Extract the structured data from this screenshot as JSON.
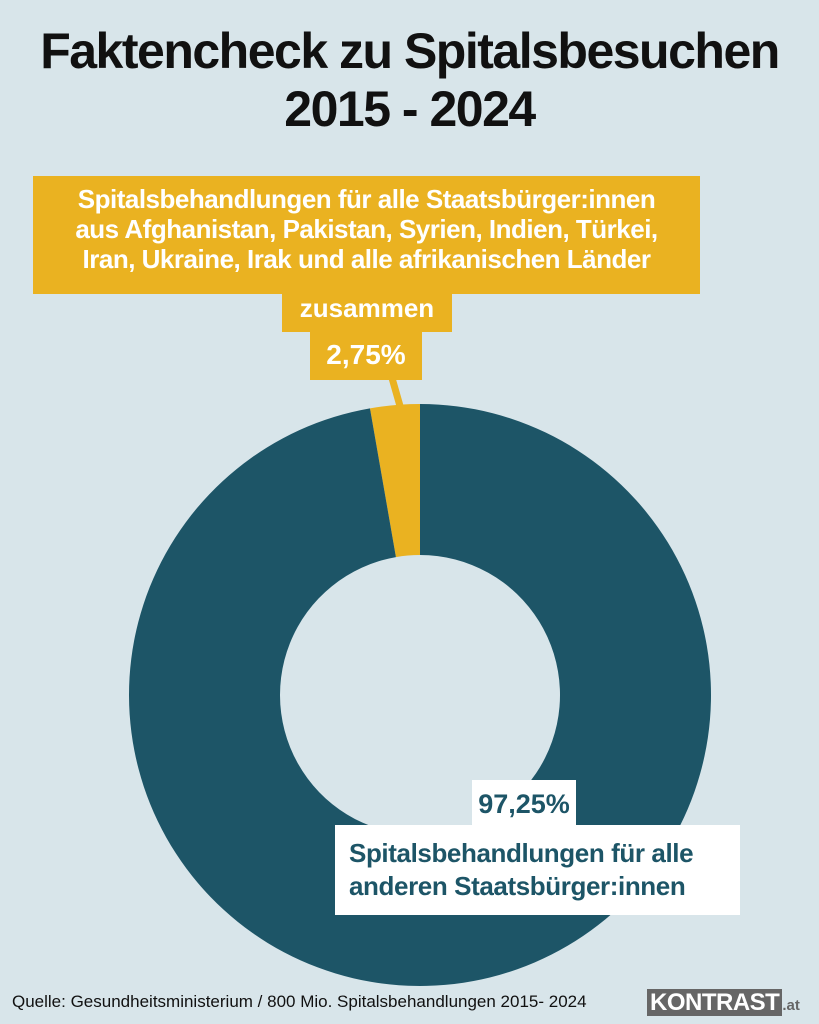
{
  "title_line1": "Faktencheck zu Spitalsbesuchen",
  "title_line2": "2015 - 2024",
  "chart_data": {
    "type": "pie",
    "donut": true,
    "title": "Faktencheck zu Spitalsbesuchen 2015 - 2024",
    "slices": [
      {
        "label": "Spitalsbehandlungen für alle Staatsbürger:innen aus Afghanistan, Pakistan, Syrien, Indien, Türkei, Iran, Ukraine, Irak und alle afrikanischen Länder zusammen",
        "value": 2.75,
        "value_label": "2,75%",
        "color": "#eab221"
      },
      {
        "label": "Spitalsbehandlungen für alle anderen Staatsbürger:innen",
        "value": 97.25,
        "value_label": "97,25%",
        "color": "#1d5567"
      }
    ]
  },
  "yellow_label_lines": [
    "Spitalsbehandlungen für alle Staatsbürger:innen",
    "aus Afghanistan, Pakistan, Syrien, Indien, Türkei,",
    "Iran, Ukraine, Irak und alle afrikanischen Länder",
    "zusammen"
  ],
  "white_label_lines": [
    "Spitalsbehandlungen für alle",
    "anderen Staatsbürger:innen"
  ],
  "source": "Quelle: Gesundheitsministerium / 800 Mio. Spitalsbehandlungen 2015- 2024",
  "logo": {
    "main": "KONTRAST",
    "suffix": ".at"
  },
  "colors": {
    "background": "#d8e5ea"
  }
}
